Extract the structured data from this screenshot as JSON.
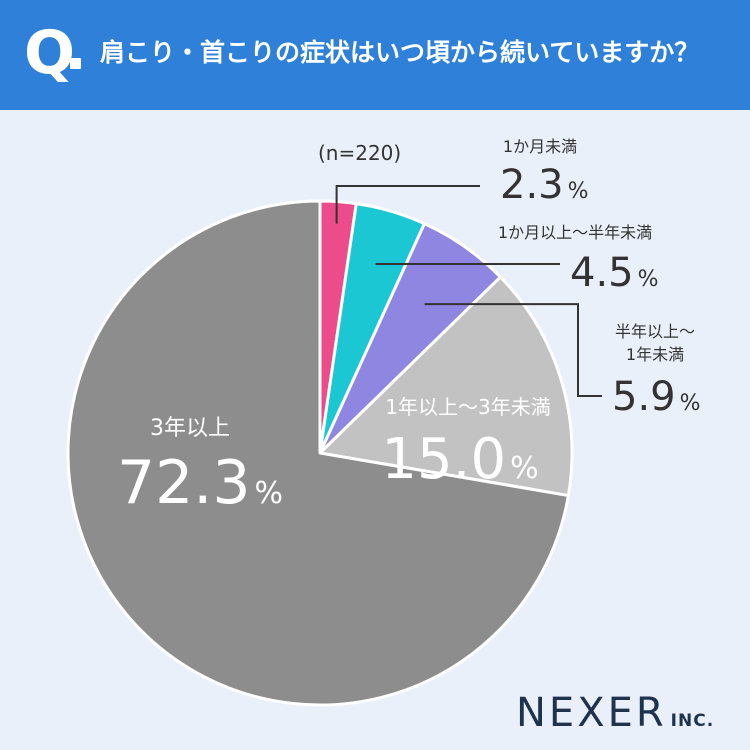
{
  "header": {
    "q_mark": "Q",
    "question": "肩こり・首こりの症状はいつ頃から続いていますか？"
  },
  "chart_data": {
    "type": "pie",
    "sample_size": "(n=220)",
    "percent_unit": "%",
    "start_angle_deg": 0,
    "direction": "clockwise",
    "slices": [
      {
        "label": "1か月未満",
        "value": 2.3,
        "value_text": "2.3",
        "color": "#ec4c8a"
      },
      {
        "label": "1か月以上～半年未満",
        "value": 4.5,
        "value_text": "4.5",
        "color": "#1bc7d3"
      },
      {
        "label_lines": [
          "半年以上～",
          "1年未満"
        ],
        "value": 5.9,
        "value_text": "5.9",
        "color": "#8f86e1"
      },
      {
        "label": "1年以上～3年未満",
        "value": 15.0,
        "value_text": "15.0",
        "color": "#c2c2c2"
      },
      {
        "label": "3年以上",
        "value": 72.3,
        "value_text": "72.3",
        "color": "#8d8d8d"
      }
    ]
  },
  "logo": {
    "main": "NEXER",
    "sub": "INC."
  }
}
